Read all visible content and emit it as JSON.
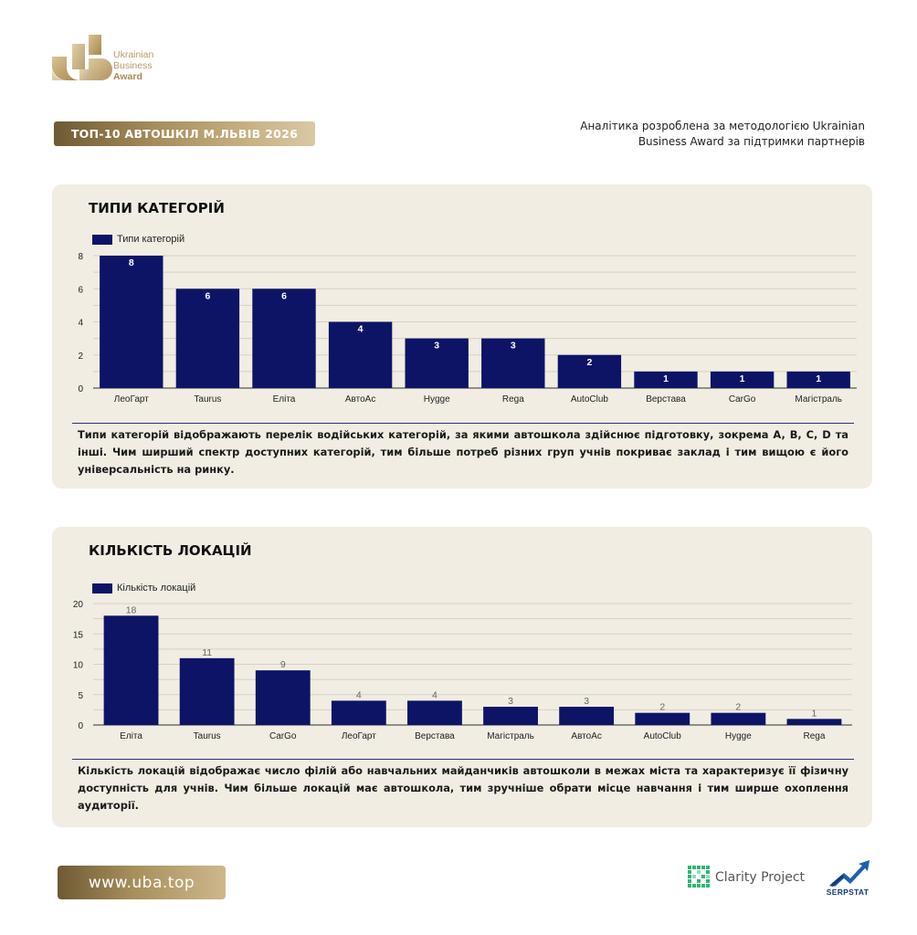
{
  "brand": {
    "logo_line1": "Ukrainian",
    "logo_line2": "Business",
    "logo_line3": "Award"
  },
  "header": {
    "badge": "ТОП-10 АВТОШКІЛ М.ЛЬВІВ 2026",
    "methodology": "Аналітика розроблена за методологією Ukrainian Business Award за підтримки партнерів"
  },
  "chart_data": [
    {
      "type": "bar",
      "title": "ТИПИ КАТЕГОРІЙ",
      "legend": "Типи категорій",
      "categories": [
        "ЛеоГарт",
        "Taurus",
        "Еліта",
        "АвтоАс",
        "Hygge",
        "Rega",
        "AutoClub",
        "Верстава",
        "CarGo",
        "Магістраль"
      ],
      "series": [
        {
          "name": "Типи категорій",
          "values": [
            8,
            6,
            6,
            4,
            3,
            3,
            2,
            1,
            1,
            1
          ]
        }
      ],
      "yticks": [
        0,
        2,
        4,
        6,
        8
      ],
      "ylim": [
        0,
        8
      ],
      "bar_color": "#0d1466",
      "label_position": "inside",
      "grid": true,
      "description": "Типи категорій відображають перелік водійських категорій, за якими автошкола здійснює підготовку, зокрема A, B, C, D та інші. Чим ширший спектр доступних категорій, тим більше потреб різних груп учнів покриває заклад і тим вищою є його універсальність на ринку."
    },
    {
      "type": "bar",
      "title": "КІЛЬКІСТЬ ЛОКАЦІЙ",
      "legend": "Кількість локацій",
      "categories": [
        "Еліта",
        "Taurus",
        "CarGo",
        "ЛеоГарт",
        "Верстава",
        "Магістраль",
        "АвтоАс",
        "AutoClub",
        "Hygge",
        "Rega"
      ],
      "series": [
        {
          "name": "Кількість локацій",
          "values": [
            18,
            11,
            9,
            4,
            4,
            3,
            3,
            2,
            2,
            1
          ]
        }
      ],
      "yticks": [
        0,
        5,
        10,
        15,
        20
      ],
      "ylim": [
        0,
        20
      ],
      "bar_color": "#0d1466",
      "label_position": "above",
      "grid": true,
      "description": "Кількість локацій відображає число філій або навчальних майданчиків автошколи в межах міста та характеризує її фізичну доступність для учнів. Чим більше локацій має автошкола, тим зручніше обрати місце навчання і тим ширше охоплення аудиторії."
    }
  ],
  "footer": {
    "url": "www.uba.top",
    "partner1": "Clarity Project",
    "partner2": "SERPSTAT"
  },
  "colors": {
    "gold": "#a88e5c",
    "navy": "#0d1466",
    "card_bg": "#f1ede3"
  }
}
